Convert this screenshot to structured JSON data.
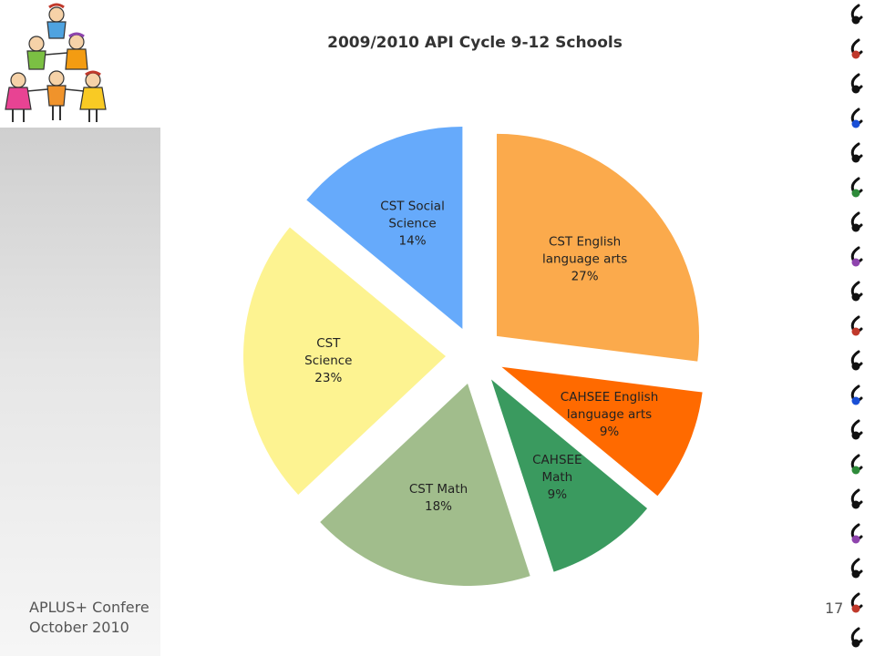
{
  "footer": {
    "conference": "APLUS+ Confere",
    "date": "October 2010",
    "page_number": "17"
  },
  "colors": {
    "cst_english": "#fbaa4c",
    "cahsee_english": "#ff6a00",
    "cahsee_math": "#3a9a5f",
    "cst_math": "#a1bd8c",
    "cst_science": "#fdf391",
    "cst_social_science": "#66aafb"
  },
  "chart_data": {
    "type": "pie",
    "title": "2009/2010 API Cycle 9-12 Schools",
    "exploded": true,
    "slices": [
      {
        "label_lines": [
          "CST English",
          "language arts"
        ],
        "pct_text": "27%",
        "value": 27,
        "color": "#fbaa4c"
      },
      {
        "label_lines": [
          "CAHSEE English",
          "language arts"
        ],
        "pct_text": "9%",
        "value": 9,
        "color": "#ff6a00"
      },
      {
        "label_lines": [
          "CAHSEE",
          "Math"
        ],
        "pct_text": "9%",
        "value": 9,
        "color": "#3a9a5f"
      },
      {
        "label_lines": [
          "CST Math"
        ],
        "pct_text": "18%",
        "value": 18,
        "color": "#a1bd8c"
      },
      {
        "label_lines": [
          "CST",
          "Science"
        ],
        "pct_text": "23%",
        "value": 23,
        "color": "#fdf391"
      },
      {
        "label_lines": [
          "CST Social",
          "Science"
        ],
        "pct_text": "14%",
        "value": 14,
        "color": "#66aafb"
      }
    ]
  }
}
